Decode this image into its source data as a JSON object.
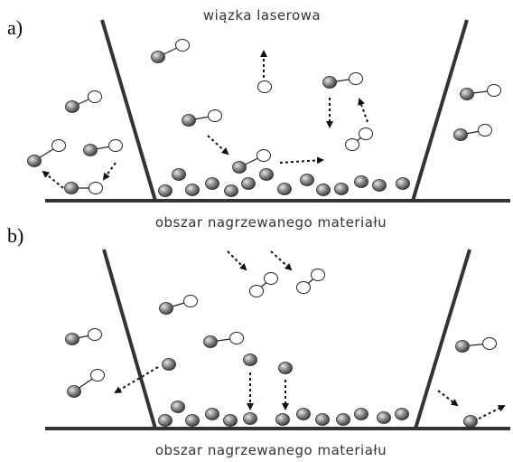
{
  "panels": [
    {
      "label": "a)",
      "top_label": "wiązka laserowa",
      "bottom_label": "obszar nagrzewanego materiału"
    },
    {
      "label": "b)",
      "bottom_label": "obszar nagrzewanego materiału"
    }
  ]
}
